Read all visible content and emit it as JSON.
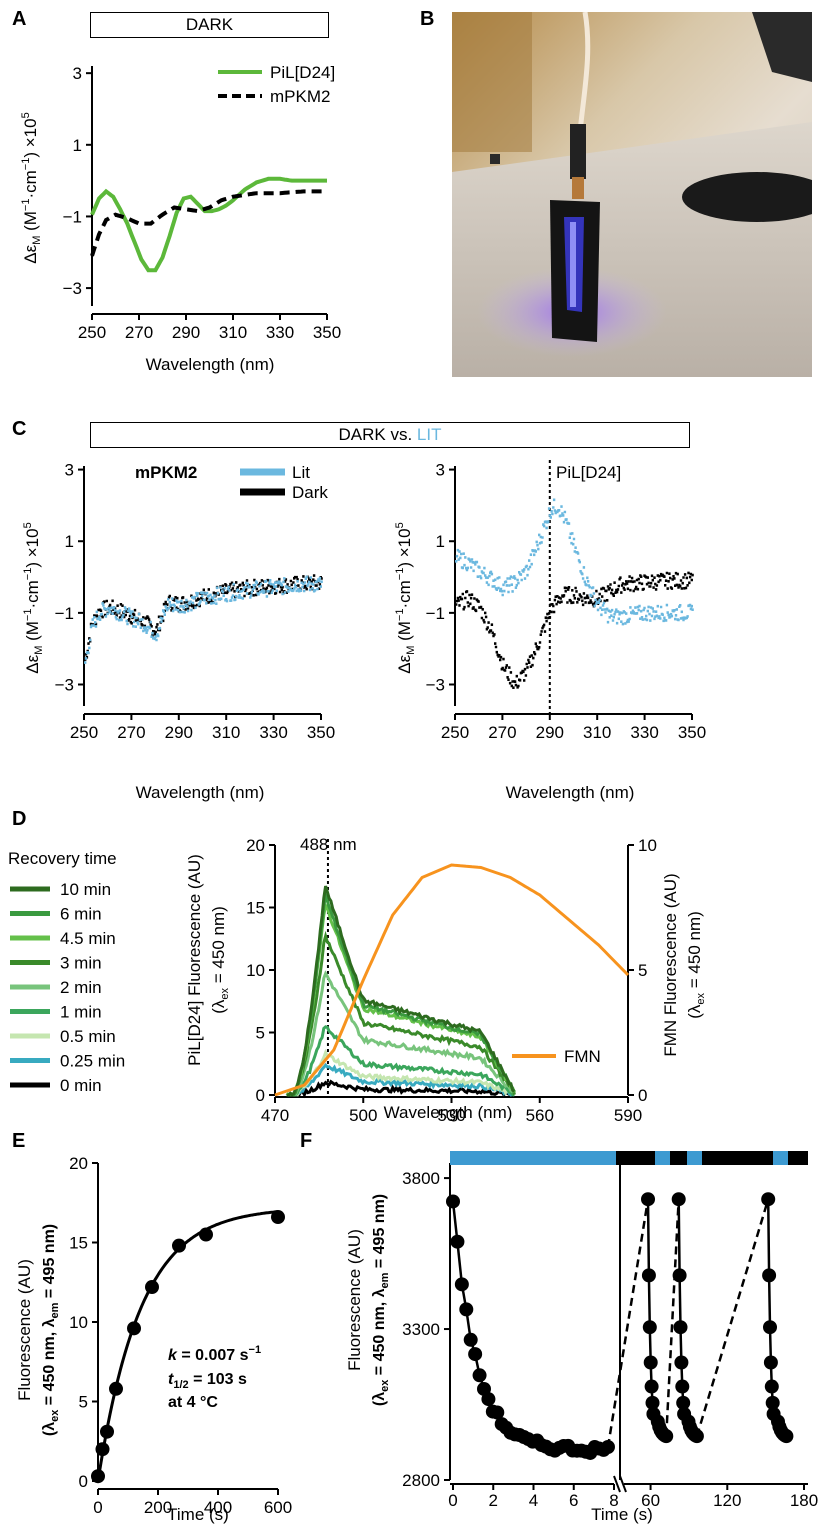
{
  "panel_labels": {
    "A": "A",
    "B": "B",
    "C": "C",
    "D": "D",
    "E": "E",
    "F": "F"
  },
  "banners": {
    "a": "DARK",
    "c_dark": "DARK vs.",
    "c_lit": "LIT"
  },
  "colors": {
    "green": "#5cb83a",
    "lit": "#6bb8df",
    "dark": "#000000",
    "orange": "#f7931e",
    "bar_blue": "#3d9ad1"
  },
  "chart_data": [
    {
      "id": "A",
      "type": "line",
      "title": "",
      "xlabel": "Wavelength (nm)",
      "ylabel": "Δε_M (M⁻¹·cm⁻¹) ×10⁵",
      "xlim": [
        250,
        350
      ],
      "ylim": [
        -3.5,
        3.2
      ],
      "xticks": [
        250,
        270,
        290,
        310,
        330,
        350
      ],
      "yticks": [
        3,
        1,
        -1,
        -3
      ],
      "legend": "top-right",
      "series": [
        {
          "name": "PiL[D24]",
          "style": "solid",
          "color": "#5cb83a",
          "x": [
            250,
            253,
            256,
            259,
            262,
            265,
            268,
            271,
            274,
            277,
            280,
            283,
            286,
            289,
            292,
            295,
            298,
            301,
            304,
            307,
            310,
            315,
            320,
            325,
            330,
            335,
            340,
            345,
            350
          ],
          "y": [
            -0.95,
            -0.5,
            -0.3,
            -0.45,
            -0.8,
            -1.2,
            -1.7,
            -2.2,
            -2.5,
            -2.5,
            -2.15,
            -1.55,
            -0.9,
            -0.5,
            -0.45,
            -0.65,
            -0.85,
            -0.85,
            -0.8,
            -0.7,
            -0.55,
            -0.25,
            -0.05,
            0.05,
            0.05,
            0.0,
            0.0,
            0.0,
            0.0
          ]
        },
        {
          "name": "mPKM2",
          "style": "dashed",
          "color": "#000000",
          "x": [
            250,
            253,
            256,
            260,
            265,
            270,
            275,
            280,
            285,
            290,
            295,
            300,
            305,
            310,
            320,
            330,
            340,
            350
          ],
          "y": [
            -2.1,
            -1.5,
            -1.1,
            -0.95,
            -1.05,
            -1.2,
            -1.2,
            -0.95,
            -0.75,
            -0.8,
            -0.85,
            -0.75,
            -0.55,
            -0.45,
            -0.35,
            -0.35,
            -0.3,
            -0.3
          ]
        }
      ]
    },
    {
      "id": "C1",
      "type": "scatter",
      "title": "mPKM2",
      "xlabel": "Wavelength (nm)",
      "ylabel": "Δε_M (M⁻¹·cm⁻¹) ×10⁵",
      "xlim": [
        250,
        350
      ],
      "ylim": [
        -3.6,
        3.1
      ],
      "xticks": [
        250,
        270,
        290,
        310,
        330,
        350
      ],
      "yticks": [
        3,
        1,
        -1,
        -3
      ],
      "legend": "top-right",
      "series": [
        {
          "name": "Lit",
          "color": "#6bb8df",
          "x": [
            250,
            253,
            256,
            260,
            265,
            270,
            275,
            280,
            285,
            290,
            300,
            310,
            320,
            330,
            340,
            350
          ],
          "y": [
            -2.4,
            -1.4,
            -1.0,
            -0.85,
            -1.0,
            -1.15,
            -1.3,
            -1.6,
            -0.75,
            -0.8,
            -0.6,
            -0.45,
            -0.35,
            -0.3,
            -0.2,
            -0.2
          ]
        },
        {
          "name": "Dark",
          "color": "#000000",
          "x": [
            250,
            253,
            256,
            260,
            265,
            270,
            275,
            280,
            285,
            290,
            300,
            310,
            320,
            330,
            340,
            350
          ],
          "y": [
            -2.3,
            -1.3,
            -0.95,
            -0.85,
            -0.95,
            -1.1,
            -1.25,
            -1.5,
            -0.7,
            -0.75,
            -0.55,
            -0.4,
            -0.3,
            -0.25,
            -0.2,
            -0.15
          ]
        }
      ]
    },
    {
      "id": "C2",
      "type": "scatter",
      "title": "PiL[D24]",
      "xlabel": "Wavelength (nm)",
      "ylabel": "Δε_M (M⁻¹·cm⁻¹) ×10⁵",
      "xlim": [
        250,
        350
      ],
      "ylim": [
        -3.6,
        3.1
      ],
      "xticks": [
        250,
        270,
        290,
        310,
        330,
        350
      ],
      "yticks": [
        3,
        1,
        -1,
        -3
      ],
      "vline": 290,
      "series": [
        {
          "name": "Lit",
          "color": "#6bb8df",
          "x": [
            250,
            255,
            260,
            265,
            270,
            275,
            280,
            285,
            290,
            293,
            296,
            300,
            305,
            310,
            315,
            320,
            330,
            340,
            350
          ],
          "y": [
            0.55,
            0.4,
            0.15,
            -0.05,
            -0.3,
            -0.15,
            0.2,
            1.0,
            1.9,
            2.0,
            1.6,
            0.8,
            -0.1,
            -0.8,
            -1.1,
            -1.1,
            -1.0,
            -1.0,
            -1.0
          ]
        },
        {
          "name": "Dark",
          "color": "#000000",
          "x": [
            250,
            255,
            260,
            265,
            270,
            275,
            280,
            285,
            290,
            295,
            300,
            305,
            310,
            315,
            320,
            330,
            340,
            350
          ],
          "y": [
            -0.8,
            -0.6,
            -0.85,
            -1.5,
            -2.5,
            -3.0,
            -2.6,
            -1.8,
            -0.9,
            -0.5,
            -0.5,
            -0.6,
            -0.6,
            -0.4,
            -0.2,
            -0.15,
            -0.1,
            -0.1
          ]
        }
      ]
    },
    {
      "id": "D",
      "type": "line",
      "title": "",
      "xlabel": "Wavelength (nm)",
      "ylabel": "PiL[D24] Fluorescence (AU) (λex = 450 nm)",
      "ylabel2": "FMN Fluorescence (AU) (λex = 450 nm)",
      "xlim": [
        470,
        590
      ],
      "ylim": [
        0,
        20
      ],
      "ylim2": [
        0,
        10
      ],
      "xticks": [
        470,
        500,
        530,
        560,
        590
      ],
      "yticks": [
        0,
        5,
        10,
        15,
        20
      ],
      "yticks2": [
        0,
        5,
        10
      ],
      "annotation": "488 nm",
      "vline": 488,
      "legend_title": "Recovery time",
      "series": [
        {
          "name": "10 min",
          "color": "#2d6b1f",
          "peak": 16.8
        },
        {
          "name": "6 min",
          "color": "#3a9a3f",
          "peak": 16.0
        },
        {
          "name": "4.5 min",
          "color": "#64c04a",
          "peak": 15.4
        },
        {
          "name": "3 min",
          "color": "#3a8a2a",
          "peak": 12.8
        },
        {
          "name": "2 min",
          "color": "#78c47c",
          "peak": 9.8
        },
        {
          "name": "1 min",
          "color": "#3ba65c",
          "peak": 5.5
        },
        {
          "name": "0.5 min",
          "color": "#c5e6b0",
          "peak": 3.3
        },
        {
          "name": "0.25 min",
          "color": "#38aac0",
          "peak": 2.4
        },
        {
          "name": "0 min",
          "color": "#000000",
          "peak": 1.0
        },
        {
          "name": "FMN",
          "color": "#f7931e",
          "axis": "right",
          "x": [
            470,
            480,
            490,
            500,
            510,
            520,
            530,
            540,
            550,
            560,
            570,
            580,
            590
          ],
          "y": [
            0,
            0.4,
            1.8,
            4.6,
            7.2,
            8.7,
            9.2,
            9.1,
            8.7,
            8.0,
            7.0,
            6.0,
            4.8
          ]
        }
      ]
    },
    {
      "id": "E",
      "type": "scatter",
      "title": "",
      "xlabel": "Time (s)",
      "ylabel": "Fluorescence (AU) (λex = 450 nm, λem = 495 nm)",
      "xlim": [
        0,
        600
      ],
      "ylim": [
        0,
        20
      ],
      "xticks": [
        0,
        200,
        400,
        600
      ],
      "yticks": [
        0,
        5,
        10,
        15,
        20
      ],
      "x": [
        0,
        15,
        30,
        60,
        120,
        180,
        270,
        360,
        600
      ],
      "y": [
        0.3,
        2.0,
        3.1,
        5.8,
        9.6,
        12.2,
        14.8,
        15.5,
        16.6
      ],
      "annotations": [
        "k = 0.007 s⁻¹",
        "t1/2 = 103 s",
        "at 4 °C"
      ]
    },
    {
      "id": "F",
      "type": "scatter",
      "title": "",
      "xlabel": "Time (s)",
      "ylabel": "Fluorescence (AU) (λex = 450 nm, λem = 495 nm)",
      "ylim": [
        2800,
        3850
      ],
      "xticks_left": [
        0,
        2,
        4,
        6,
        8
      ],
      "xticks_right": [
        60,
        120,
        180
      ],
      "yticks": [
        2800,
        3300,
        3800
      ]
    }
  ]
}
